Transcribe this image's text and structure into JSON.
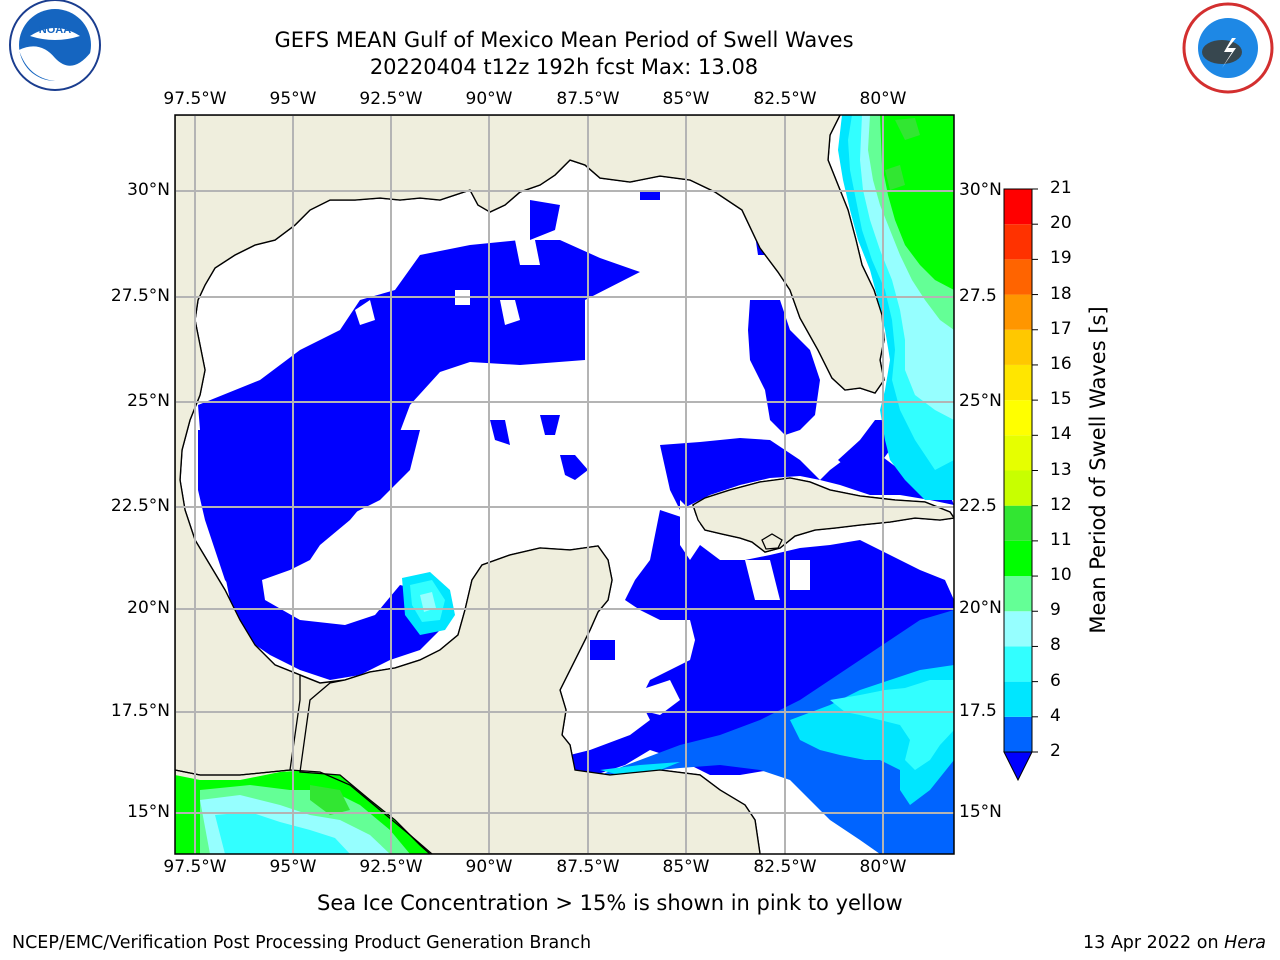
{
  "title_line1": "GEFS MEAN Gulf of Mexico Mean Period of Swell Waves",
  "title_line2": "20220404 t12z 192h fcst   Max: 13.08",
  "longitude_labels": [
    "97.5°W",
    "95°W",
    "92.5°W",
    "90°W",
    "87.5°W",
    "85°W",
    "82.5°W",
    "80°W"
  ],
  "latitude_labels_left": [
    "30°N",
    "27.5°N",
    "25°N",
    "22.5°N",
    "20°N",
    "17.5°N",
    "15°N"
  ],
  "latitude_labels_right": [
    "30°N",
    "27.5",
    "25°N",
    "22.5",
    "20°N",
    "17.5",
    "15°N"
  ],
  "colorbar": {
    "label": "Mean Period of Swell Waves [s]",
    "ticks": [
      "21",
      "20",
      "19",
      "18",
      "17",
      "16",
      "15",
      "14",
      "13",
      "12",
      "11",
      "10",
      "9",
      "8",
      "6",
      "4",
      "2"
    ],
    "bins": [
      {
        "from": 2,
        "to": 4,
        "color": "#0064ff"
      },
      {
        "from": 4,
        "to": 6,
        "color": "#00e6ff"
      },
      {
        "from": 6,
        "to": 8,
        "color": "#32ffff"
      },
      {
        "from": 8,
        "to": 9,
        "color": "#96ffff"
      },
      {
        "from": 9,
        "to": 10,
        "color": "#64ff96"
      },
      {
        "from": 10,
        "to": 11,
        "color": "#00ff00"
      },
      {
        "from": 11,
        "to": 12,
        "color": "#32e632"
      },
      {
        "from": 12,
        "to": 13,
        "color": "#c8ff00"
      },
      {
        "from": 13,
        "to": 14,
        "color": "#e6ff00"
      },
      {
        "from": 14,
        "to": 15,
        "color": "#ffff00"
      },
      {
        "from": 15,
        "to": 16,
        "color": "#ffe600"
      },
      {
        "from": 16,
        "to": 17,
        "color": "#ffc800"
      },
      {
        "from": 17,
        "to": 18,
        "color": "#ff9600"
      },
      {
        "from": 18,
        "to": 19,
        "color": "#ff6400"
      },
      {
        "from": 19,
        "to": 20,
        "color": "#ff3200"
      },
      {
        "from": 20,
        "to": 21,
        "color": "#ff0000"
      }
    ],
    "under_color": "#0000ff"
  },
  "logos": {
    "left": "NOAA",
    "right": "NATIONAL WEATHER SERVICE"
  },
  "sea_ice_note": "Sea Ice Concentration > 15% is shown in pink to yellow",
  "footer_left": "NCEP/EMC/Verification Post Processing Product Generation Branch",
  "footer_right_date": "13 Apr 2022 on",
  "footer_right_host": "Hera",
  "colors": {
    "land": "#efeedd",
    "ocean_calm": "#ffffff",
    "grid": "#b4b4b4"
  }
}
